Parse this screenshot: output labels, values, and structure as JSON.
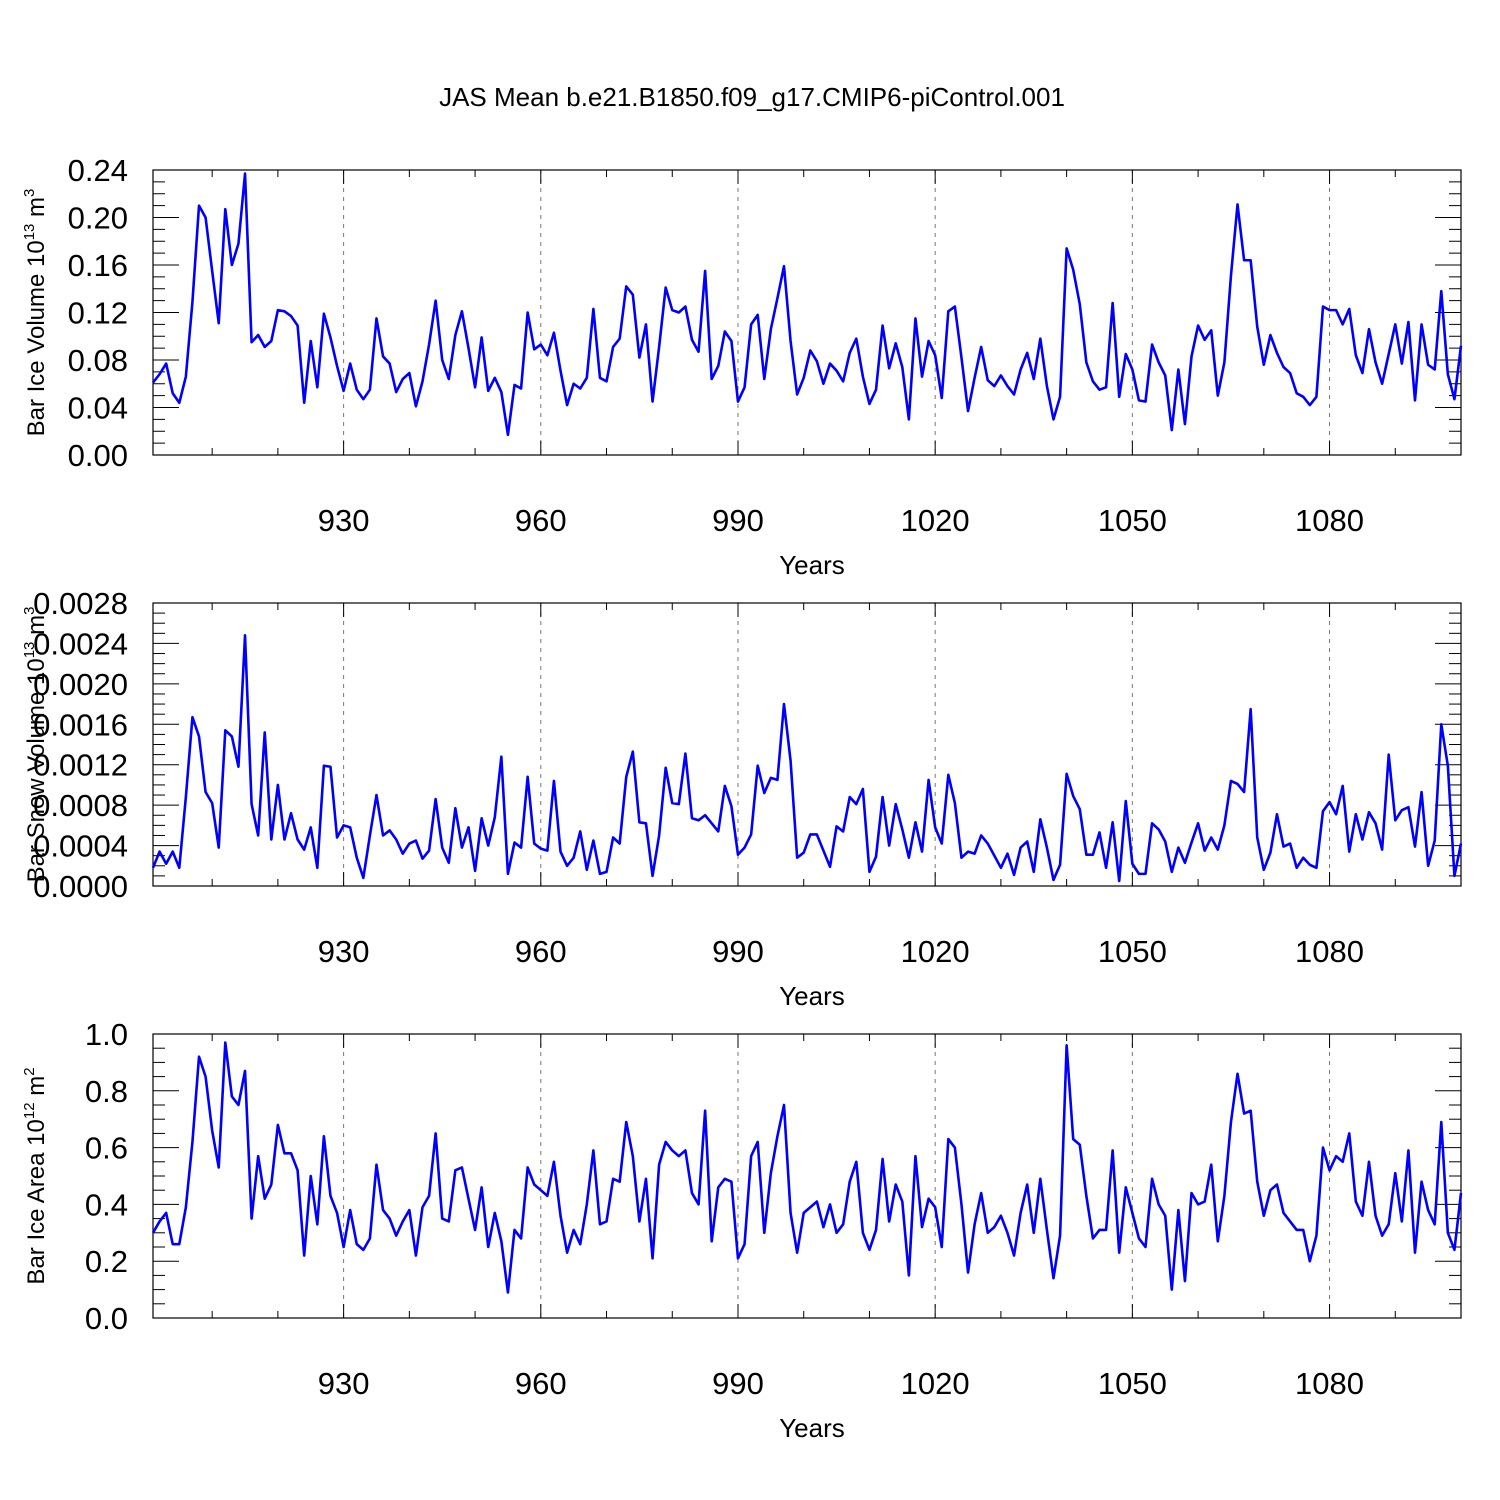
{
  "colors": {
    "series": "#0000ff",
    "grid": "#777777"
  },
  "chart_data": [
    {
      "type": "line",
      "title": "JAS Mean b.e21.B1850.f09_g17.CMIP6-piControl.001",
      "xlabel": "Years",
      "ylabel": "Bar Ice Volume 10",
      "ylabel_exp": "13",
      "ylabel_unit": " m",
      "ylabel_unit_exp": "3",
      "xlim": [
        901,
        1100
      ],
      "ylim": [
        0,
        0.24
      ],
      "grid": "vertical-dashed",
      "xticks": [
        930,
        960,
        990,
        1020,
        1050,
        1080
      ],
      "yticks": [
        0,
        0.04,
        0.08,
        0.12,
        0.16,
        0.2,
        0.24
      ],
      "ytick_labels": [
        "0.00",
        "0.04",
        "0.08",
        "0.12",
        "0.16",
        "0.20",
        "0.24"
      ],
      "x_start": 901,
      "values": [
        0.061,
        0.068,
        0.077,
        0.052,
        0.044,
        0.066,
        0.129,
        0.21,
        0.2,
        0.155,
        0.111,
        0.207,
        0.16,
        0.178,
        0.237,
        0.095,
        0.101,
        0.091,
        0.096,
        0.122,
        0.121,
        0.117,
        0.109,
        0.044,
        0.096,
        0.057,
        0.119,
        0.099,
        0.075,
        0.054,
        0.077,
        0.055,
        0.047,
        0.055,
        0.115,
        0.083,
        0.077,
        0.053,
        0.064,
        0.069,
        0.041,
        0.062,
        0.093,
        0.13,
        0.08,
        0.064,
        0.101,
        0.121,
        0.09,
        0.057,
        0.099,
        0.054,
        0.065,
        0.053,
        0.017,
        0.059,
        0.056,
        0.12,
        0.089,
        0.093,
        0.084,
        0.103,
        0.071,
        0.042,
        0.06,
        0.056,
        0.065,
        0.123,
        0.065,
        0.062,
        0.091,
        0.098,
        0.142,
        0.135,
        0.082,
        0.11,
        0.045,
        0.091,
        0.141,
        0.122,
        0.12,
        0.125,
        0.097,
        0.087,
        0.155,
        0.064,
        0.075,
        0.104,
        0.096,
        0.045,
        0.057,
        0.11,
        0.118,
        0.064,
        0.106,
        0.132,
        0.159,
        0.096,
        0.051,
        0.065,
        0.088,
        0.079,
        0.06,
        0.077,
        0.071,
        0.062,
        0.086,
        0.098,
        0.066,
        0.043,
        0.055,
        0.109,
        0.073,
        0.094,
        0.074,
        0.03,
        0.115,
        0.066,
        0.096,
        0.084,
        0.048,
        0.121,
        0.125,
        0.082,
        0.037,
        0.065,
        0.091,
        0.063,
        0.058,
        0.067,
        0.058,
        0.051,
        0.072,
        0.086,
        0.064,
        0.098,
        0.058,
        0.03,
        0.049,
        0.174,
        0.156,
        0.127,
        0.078,
        0.062,
        0.055,
        0.057,
        0.128,
        0.049,
        0.085,
        0.072,
        0.046,
        0.045,
        0.093,
        0.078,
        0.067,
        0.021,
        0.072,
        0.026,
        0.083,
        0.109,
        0.097,
        0.105,
        0.05,
        0.078,
        0.151,
        0.211,
        0.164,
        0.164,
        0.108,
        0.076,
        0.101,
        0.086,
        0.074,
        0.069,
        0.052,
        0.049,
        0.042,
        0.049,
        0.125,
        0.122,
        0.122,
        0.11,
        0.123,
        0.084,
        0.069,
        0.106,
        0.078,
        0.06,
        0.085,
        0.11,
        0.077,
        0.112,
        0.046,
        0.11,
        0.076,
        0.072,
        0.138,
        0.068,
        0.047,
        0.092
      ]
    },
    {
      "type": "line",
      "xlabel": "Years",
      "ylabel": "Bar Snow Volume 10",
      "ylabel_exp": "13",
      "ylabel_unit": " m",
      "ylabel_unit_exp": "3",
      "xlim": [
        901,
        1100
      ],
      "ylim": [
        0,
        0.0028
      ],
      "grid": "vertical-dashed",
      "xticks": [
        930,
        960,
        990,
        1020,
        1050,
        1080
      ],
      "yticks": [
        0,
        0.0004,
        0.0008,
        0.0012,
        0.0016,
        0.002,
        0.0024,
        0.0028
      ],
      "ytick_labels": [
        "0.0000",
        "0.0004",
        "0.0008",
        "0.0012",
        "0.0016",
        "0.0020",
        "0.0024",
        "0.0028"
      ],
      "x_start": 901,
      "values": [
        0.00018,
        0.00034,
        0.00022,
        0.00034,
        0.00018,
        0.00088,
        0.00167,
        0.00148,
        0.00093,
        0.00082,
        0.00038,
        0.00154,
        0.00148,
        0.00118,
        0.00248,
        0.00081,
        0.0005,
        0.00152,
        0.00046,
        0.001,
        0.00046,
        0.00072,
        0.00046,
        0.00036,
        0.00058,
        0.00018,
        0.00119,
        0.00118,
        0.00048,
        0.0006,
        0.00058,
        0.00028,
        8e-05,
        0.0005,
        0.0009,
        0.0005,
        0.00055,
        0.00046,
        0.00032,
        0.00042,
        0.00045,
        0.00027,
        0.00035,
        0.00086,
        0.00038,
        0.00023,
        0.00077,
        0.00038,
        0.00058,
        0.00015,
        0.00067,
        0.0004,
        0.00068,
        0.00128,
        0.00012,
        0.00043,
        0.00038,
        0.00108,
        0.00042,
        0.00037,
        0.00035,
        0.00104,
        0.00034,
        0.0002,
        0.00028,
        0.00054,
        0.00016,
        0.00045,
        0.00012,
        0.00014,
        0.00048,
        0.00042,
        0.00108,
        0.00133,
        0.00063,
        0.00062,
        0.0001,
        0.0005,
        0.00117,
        0.00082,
        0.00081,
        0.00131,
        0.00067,
        0.00065,
        0.0007,
        0.00062,
        0.00054,
        0.00099,
        0.00079,
        0.00031,
        0.00038,
        0.00051,
        0.00119,
        0.00092,
        0.00107,
        0.00105,
        0.0018,
        0.00124,
        0.00028,
        0.00033,
        0.00051,
        0.00051,
        0.00035,
        0.00019,
        0.00059,
        0.00054,
        0.00088,
        0.00081,
        0.00096,
        0.00014,
        0.00029,
        0.00088,
        0.0004,
        0.00081,
        0.00056,
        0.00028,
        0.00063,
        0.00034,
        0.00105,
        0.00058,
        0.00042,
        0.0011,
        0.00082,
        0.00028,
        0.00034,
        0.00032,
        0.0005,
        0.00042,
        0.0003,
        0.00018,
        0.00032,
        0.00011,
        0.00038,
        0.00044,
        0.00014,
        0.00066,
        0.00038,
        6e-05,
        0.00021,
        0.00111,
        0.00089,
        0.00076,
        0.00031,
        0.00031,
        0.00053,
        0.00018,
        0.00063,
        5e-05,
        0.00084,
        0.00022,
        0.00012,
        0.00012,
        0.00062,
        0.00056,
        0.00044,
        0.00014,
        0.00038,
        0.00023,
        0.00043,
        0.00062,
        0.00035,
        0.00048,
        0.00036,
        0.0006,
        0.00104,
        0.00101,
        0.00093,
        0.00175,
        0.00048,
        0.00016,
        0.00033,
        0.00071,
        0.00039,
        0.00042,
        0.00018,
        0.00028,
        0.00021,
        0.00018,
        0.00074,
        0.00083,
        0.00071,
        0.00099,
        0.00034,
        0.00071,
        0.00046,
        0.00073,
        0.00062,
        0.00036,
        0.0013,
        0.00065,
        0.00075,
        0.00078,
        0.00039,
        0.00093,
        0.0002,
        0.00045,
        0.0016,
        0.00119,
        0.0001,
        0.00042
      ]
    },
    {
      "type": "line",
      "xlabel": "Years",
      "ylabel": "Bar Ice Area 10",
      "ylabel_exp": "12",
      "ylabel_unit": " m",
      "ylabel_unit_exp": "2",
      "xlim": [
        901,
        1100
      ],
      "ylim": [
        0,
        1.0
      ],
      "grid": "vertical-dashed",
      "xticks": [
        930,
        960,
        990,
        1020,
        1050,
        1080
      ],
      "yticks": [
        0,
        0.2,
        0.4,
        0.6,
        0.8,
        1.0
      ],
      "ytick_labels": [
        "0.0",
        "0.2",
        "0.4",
        "0.6",
        "0.8",
        "1.0"
      ],
      "x_start": 901,
      "values": [
        0.3,
        0.34,
        0.37,
        0.26,
        0.26,
        0.39,
        0.62,
        0.92,
        0.85,
        0.66,
        0.53,
        0.97,
        0.78,
        0.75,
        0.87,
        0.35,
        0.57,
        0.42,
        0.47,
        0.68,
        0.58,
        0.58,
        0.52,
        0.22,
        0.5,
        0.33,
        0.64,
        0.43,
        0.37,
        0.25,
        0.38,
        0.26,
        0.24,
        0.28,
        0.54,
        0.38,
        0.35,
        0.29,
        0.34,
        0.38,
        0.22,
        0.39,
        0.43,
        0.65,
        0.35,
        0.34,
        0.52,
        0.53,
        0.42,
        0.31,
        0.46,
        0.25,
        0.37,
        0.27,
        0.09,
        0.31,
        0.28,
        0.53,
        0.47,
        0.45,
        0.43,
        0.55,
        0.36,
        0.23,
        0.31,
        0.26,
        0.4,
        0.59,
        0.33,
        0.34,
        0.49,
        0.48,
        0.69,
        0.57,
        0.34,
        0.49,
        0.21,
        0.54,
        0.62,
        0.59,
        0.57,
        0.59,
        0.44,
        0.4,
        0.73,
        0.27,
        0.46,
        0.49,
        0.48,
        0.21,
        0.26,
        0.57,
        0.62,
        0.3,
        0.51,
        0.64,
        0.75,
        0.37,
        0.23,
        0.37,
        0.39,
        0.41,
        0.32,
        0.4,
        0.3,
        0.33,
        0.48,
        0.55,
        0.3,
        0.24,
        0.31,
        0.56,
        0.34,
        0.47,
        0.41,
        0.15,
        0.57,
        0.32,
        0.42,
        0.39,
        0.25,
        0.63,
        0.6,
        0.4,
        0.16,
        0.33,
        0.44,
        0.3,
        0.32,
        0.36,
        0.3,
        0.22,
        0.37,
        0.47,
        0.3,
        0.49,
        0.31,
        0.14,
        0.29,
        0.96,
        0.63,
        0.61,
        0.43,
        0.28,
        0.31,
        0.31,
        0.59,
        0.23,
        0.46,
        0.37,
        0.28,
        0.25,
        0.49,
        0.4,
        0.36,
        0.1,
        0.38,
        0.13,
        0.44,
        0.4,
        0.41,
        0.54,
        0.27,
        0.43,
        0.69,
        0.86,
        0.72,
        0.73,
        0.48,
        0.36,
        0.45,
        0.47,
        0.37,
        0.34,
        0.31,
        0.31,
        0.2,
        0.29,
        0.6,
        0.52,
        0.57,
        0.55,
        0.65,
        0.41,
        0.36,
        0.55,
        0.36,
        0.29,
        0.33,
        0.51,
        0.34,
        0.59,
        0.23,
        0.48,
        0.38,
        0.33,
        0.69,
        0.3,
        0.24,
        0.44
      ]
    }
  ]
}
